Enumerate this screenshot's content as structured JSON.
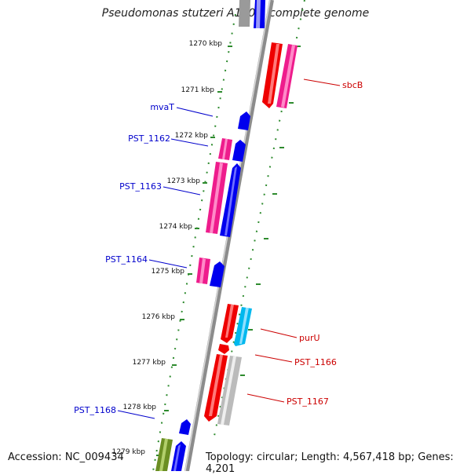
{
  "title": "Pseudomonas stutzeri A1501, complete genome",
  "accession": "Accession: NC_009434",
  "summary": "Topology: circular; Length: 4,567,418 bp; Genes: 4,201",
  "colors": {
    "backbone": "#8c8c8c",
    "tick": "#2e8b2e",
    "forward_label": "#0000cc",
    "reverse_label": "#cc0000",
    "gene_blue": "#0000ee",
    "gene_pink": "#ee1c8c",
    "gene_red": "#ee0000",
    "gene_cyan": "#00b8ee",
    "gene_gray": "#bbbbbb",
    "gene_olive": "#6b8e23"
  },
  "kbp_markers": [
    "1270 kbp",
    "1271 kbp",
    "1272 kbp",
    "1273 kbp",
    "1274 kbp",
    "1275 kbp",
    "1276 kbp",
    "1277 kbp",
    "1278 kbp",
    "1279 kbp"
  ],
  "gene_labels_forward": [
    "mvaT",
    "PST_1162",
    "PST_1163",
    "PST_1164",
    "PST_1168"
  ],
  "gene_labels_reverse": [
    "sbcB",
    "purU",
    "PST_1166",
    "PST_1167"
  ]
}
